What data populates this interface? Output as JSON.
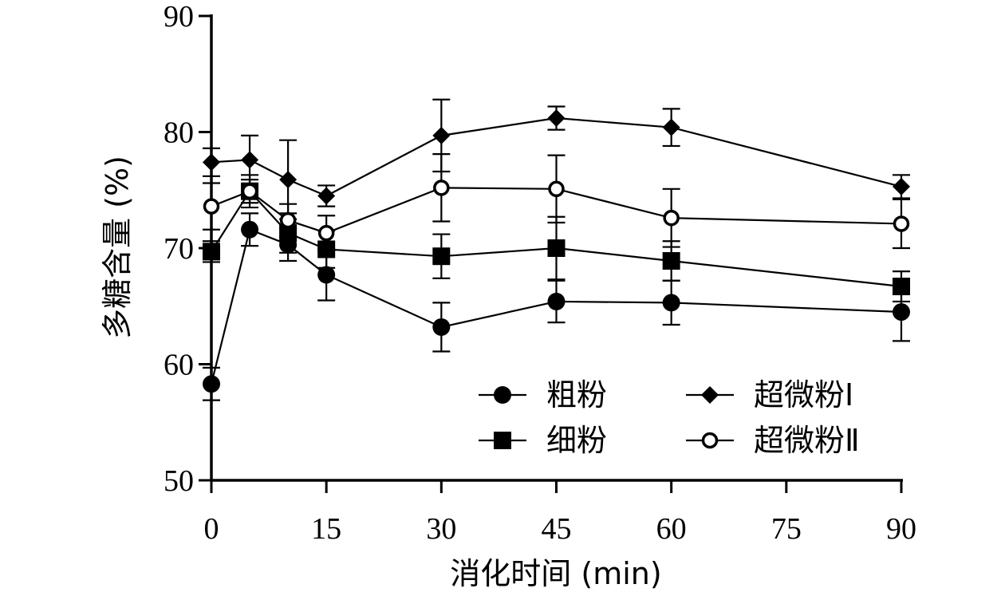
{
  "chart_data": {
    "type": "line",
    "xlabel": "消化时间 (min)",
    "ylabel": "多糖含量 (%)",
    "xlim": [
      0,
      90
    ],
    "ylim": [
      50,
      90
    ],
    "xticks": [
      0,
      15,
      30,
      45,
      60,
      75,
      90
    ],
    "yticks": [
      50,
      60,
      70,
      80,
      90
    ],
    "x": [
      0,
      5,
      10,
      15,
      30,
      45,
      60,
      90
    ],
    "grid": false,
    "legend_position": "bottom-right",
    "series": [
      {
        "name": "粗粉",
        "marker": "circle-filled",
        "values": [
          58.3,
          71.6,
          70.3,
          67.7,
          63.2,
          65.4,
          65.3,
          64.5
        ],
        "errors": [
          1.4,
          1.4,
          1.4,
          2.2,
          2.1,
          1.8,
          1.9,
          2.5
        ]
      },
      {
        "name": "细粉",
        "marker": "square-filled",
        "values": [
          69.7,
          74.9,
          71.3,
          69.9,
          69.3,
          70.0,
          68.9,
          66.7
        ],
        "errors": [
          0.9,
          1.0,
          1.7,
          1.6,
          1.9,
          2.7,
          1.7,
          1.3
        ]
      },
      {
        "name": "超微粉Ⅰ",
        "marker": "diamond-filled",
        "values": [
          77.4,
          77.6,
          75.9,
          74.5,
          79.7,
          81.2,
          80.4,
          75.3
        ],
        "errors": [
          1.2,
          2.1,
          3.4,
          0.9,
          3.1,
          1.0,
          1.6,
          1.0
        ]
      },
      {
        "name": "超微粉Ⅱ",
        "marker": "circle-open",
        "values": [
          73.6,
          74.9,
          72.4,
          71.3,
          75.2,
          75.1,
          72.6,
          72.1
        ],
        "errors": [
          2.0,
          1.4,
          1.4,
          1.5,
          2.9,
          2.9,
          2.5,
          2.1
        ]
      }
    ]
  }
}
